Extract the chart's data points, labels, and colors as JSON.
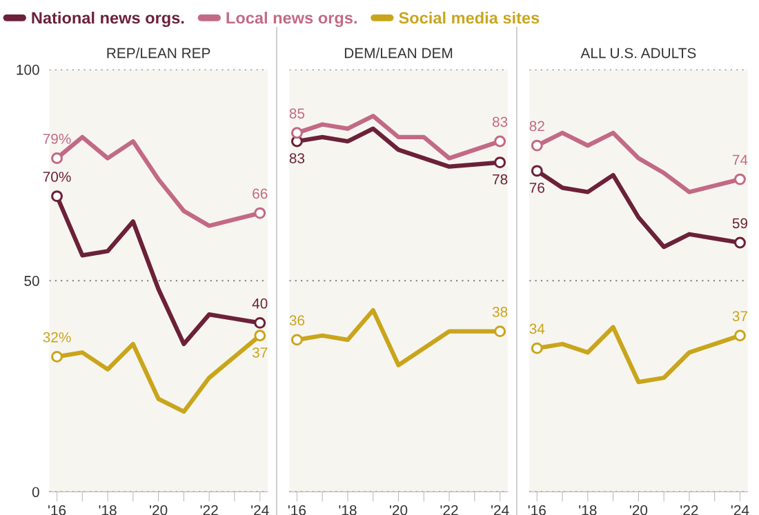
{
  "chart_data": [
    {
      "type": "line",
      "title": "REP/LEAN REP",
      "x": [
        2016,
        2017,
        2018,
        2019,
        2020,
        2021,
        2022,
        2023,
        2024
      ],
      "xlim": [
        2015.7,
        2024.3
      ],
      "xticks": [
        {
          "value": 2016,
          "label": "'16"
        },
        {
          "value": 2017,
          "label": null
        },
        {
          "value": 2018,
          "label": "'18"
        },
        {
          "value": 2019,
          "label": null
        },
        {
          "value": 2020,
          "label": "'20"
        },
        {
          "value": 2021,
          "label": null
        },
        {
          "value": 2022,
          "label": "'22"
        },
        {
          "value": 2023,
          "label": null
        },
        {
          "value": 2024,
          "label": "'24"
        }
      ],
      "ylim": [
        0,
        100
      ],
      "yticks": [
        0,
        50,
        100
      ],
      "grid": "y",
      "series": [
        {
          "color": "#6b2138",
          "values": [
            70,
            56,
            57,
            64,
            48,
            35,
            42,
            41,
            40
          ],
          "value_labels": [
            "70%",
            null,
            null,
            null,
            null,
            null,
            null,
            null,
            "40"
          ]
        },
        {
          "color": "#c26a85",
          "values": [
            79,
            84,
            79,
            83,
            74,
            66.5,
            63,
            64.5,
            66
          ],
          "value_labels": [
            "79%",
            null,
            null,
            null,
            null,
            null,
            null,
            null,
            "66"
          ]
        },
        {
          "color": "#c9a51c",
          "values": [
            32,
            33,
            29,
            35,
            22,
            19,
            27,
            32,
            37
          ],
          "value_labels": [
            "32%",
            null,
            null,
            null,
            null,
            null,
            null,
            null,
            "37"
          ]
        }
      ]
    },
    {
      "type": "line",
      "title": "DEM/LEAN DEM",
      "x": [
        2016,
        2017,
        2018,
        2019,
        2020,
        2021,
        2022,
        2023,
        2024
      ],
      "xlim": [
        2015.7,
        2024.3
      ],
      "xticks": [
        {
          "value": 2016,
          "label": "'16"
        },
        {
          "value": 2017,
          "label": null
        },
        {
          "value": 2018,
          "label": "'18"
        },
        {
          "value": 2019,
          "label": null
        },
        {
          "value": 2020,
          "label": "'20"
        },
        {
          "value": 2021,
          "label": null
        },
        {
          "value": 2022,
          "label": "'22"
        },
        {
          "value": 2023,
          "label": null
        },
        {
          "value": 2024,
          "label": "'24"
        }
      ],
      "ylim": [
        0,
        100
      ],
      "yticks": [
        0,
        50,
        100
      ],
      "grid": "y",
      "tick_labels": "x",
      "legend": "top left",
      "series": [
        {
          "name": "National news orgs.",
          "color": "#6b2138",
          "values": [
            83,
            84,
            83,
            86,
            81,
            79,
            77,
            77.5,
            78
          ],
          "value_labels": [
            "83",
            null,
            null,
            null,
            null,
            null,
            null,
            null,
            "78"
          ]
        },
        {
          "name": "Local news orgs.",
          "color": "#c26a85",
          "values": [
            85,
            87,
            86,
            89,
            84,
            84,
            79,
            81,
            83
          ],
          "value_labels": [
            "85",
            null,
            null,
            null,
            null,
            null,
            null,
            null,
            "83"
          ]
        },
        {
          "name": "Social media sites",
          "color": "#c9a51c",
          "values": [
            36,
            37,
            36,
            43,
            30,
            34,
            38,
            38,
            38
          ],
          "value_labels": [
            "36",
            null,
            null,
            null,
            null,
            null,
            null,
            null,
            "38"
          ]
        }
      ]
    },
    {
      "type": "line",
      "title": "ALL U.S. ADULTS",
      "x": [
        2016,
        2017,
        2018,
        2019,
        2020,
        2021,
        2022,
        2023,
        2024
      ],
      "xlim": [
        2015.7,
        2024.3
      ],
      "xticks": [
        {
          "value": 2016,
          "label": "'16"
        },
        {
          "value": 2017,
          "label": null
        },
        {
          "value": 2018,
          "label": "'18"
        },
        {
          "value": 2019,
          "label": null
        },
        {
          "value": 2020,
          "label": "'20"
        },
        {
          "value": 2021,
          "label": null
        },
        {
          "value": 2022,
          "label": "'22"
        },
        {
          "value": 2023,
          "label": null
        },
        {
          "value": 2024,
          "label": "'24"
        }
      ],
      "ylim": [
        0,
        100
      ],
      "yticks": [
        0,
        50,
        100
      ],
      "grid": "y",
      "tick_labels": "x",
      "series": [
        {
          "color": "#6b2138",
          "values": [
            76,
            72,
            71,
            75,
            65,
            58,
            61,
            60,
            59
          ],
          "value_labels": [
            "76",
            null,
            null,
            null,
            null,
            null,
            null,
            null,
            "59"
          ]
        },
        {
          "color": "#c26a85",
          "values": [
            82,
            85,
            82,
            85,
            79,
            75.5,
            71,
            72.5,
            74
          ],
          "value_labels": [
            "82",
            null,
            null,
            null,
            null,
            null,
            null,
            null,
            "74"
          ]
        },
        {
          "color": "#c9a51c",
          "values": [
            34,
            35,
            33,
            39,
            26,
            27,
            33,
            35,
            37
          ],
          "value_labels": [
            "34",
            null,
            null,
            null,
            null,
            null,
            null,
            null,
            "37"
          ]
        }
      ]
    }
  ]
}
